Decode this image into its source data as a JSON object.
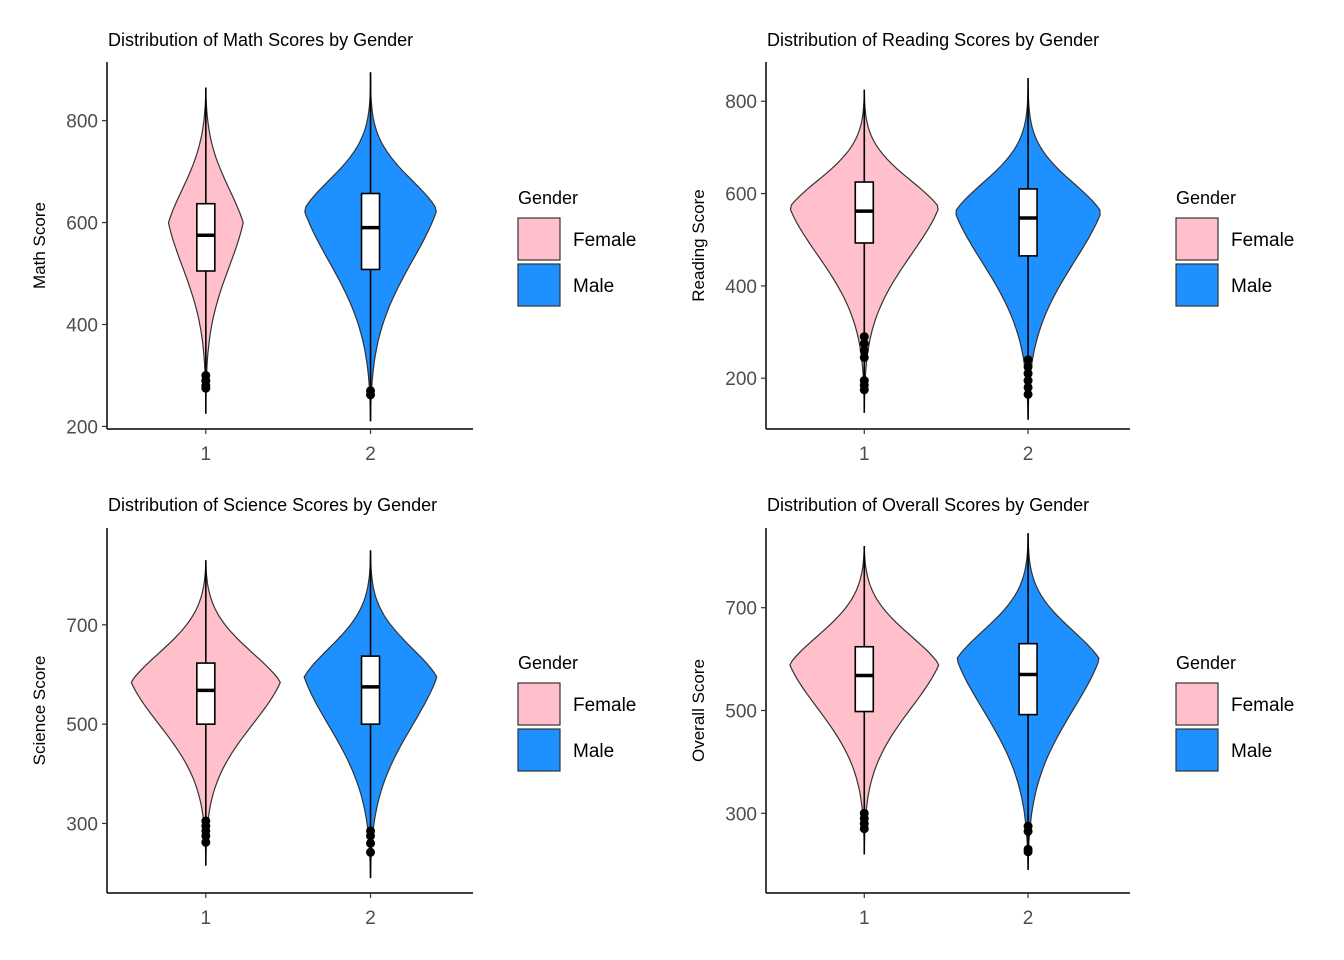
{
  "colors": {
    "female": "#FFC0CB",
    "male": "#1E90FF",
    "outline": "#333333"
  },
  "legend": {
    "title": "Gender",
    "items": [
      "Female",
      "Male"
    ]
  },
  "chart_data": [
    {
      "type": "violin",
      "title": "Distribution of Math Scores by Gender",
      "xlabel": "",
      "ylabel": "Math Score",
      "categories": [
        "1",
        "2"
      ],
      "ylim": [
        195,
        915
      ],
      "yticks": [
        200,
        400,
        600,
        800
      ],
      "series": [
        {
          "name": "Female",
          "min": 225,
          "max": 865,
          "q1": 505,
          "median": 575,
          "q3": 637,
          "center": 600,
          "half_width_frac": 0.45,
          "upper_bulge": 0.6,
          "lower_bulge": 0.5,
          "whisker_low": 305,
          "whisker_high": 820,
          "outliers": [
            300,
            290,
            280,
            275
          ]
        },
        {
          "name": "Male",
          "min": 210,
          "max": 895,
          "q1": 508,
          "median": 590,
          "q3": 657,
          "center": 625,
          "half_width_frac": 0.8,
          "upper_bulge": 0.45,
          "lower_bulge": 0.55,
          "whisker_low": 290,
          "whisker_high": 840,
          "outliers": [
            270,
            262
          ]
        }
      ]
    },
    {
      "type": "violin",
      "title": "Distribution of Reading Scores by Gender",
      "xlabel": "",
      "ylabel": "Reading Score",
      "categories": [
        "1",
        "2"
      ],
      "ylim": [
        90,
        885
      ],
      "yticks": [
        200,
        400,
        600,
        800
      ],
      "series": [
        {
          "name": "Female",
          "min": 125,
          "max": 825,
          "q1": 493,
          "median": 562,
          "q3": 625,
          "center": 570,
          "half_width_frac": 0.9,
          "upper_bulge": 0.5,
          "lower_bulge": 0.5,
          "whisker_low": 300,
          "whisker_high": 790,
          "outliers": [
            290,
            275,
            260,
            245,
            195,
            185,
            175
          ]
        },
        {
          "name": "Male",
          "min": 110,
          "max": 850,
          "q1": 465,
          "median": 547,
          "q3": 610,
          "center": 560,
          "half_width_frac": 0.88,
          "upper_bulge": 0.45,
          "lower_bulge": 0.55,
          "whisker_low": 245,
          "whisker_high": 800,
          "outliers": [
            240,
            225,
            210,
            195,
            180,
            165
          ]
        }
      ]
    },
    {
      "type": "violin",
      "title": "Distribution of Science Scores by Gender",
      "xlabel": "",
      "ylabel": "Science Score",
      "categories": [
        "1",
        "2"
      ],
      "ylim": [
        160,
        895
      ],
      "yticks": [
        300,
        500,
        700
      ],
      "series": [
        {
          "name": "Female",
          "min": 215,
          "max": 830,
          "q1": 500,
          "median": 568,
          "q3": 623,
          "center": 585,
          "half_width_frac": 0.9,
          "upper_bulge": 0.55,
          "lower_bulge": 0.5,
          "whisker_low": 310,
          "whisker_high": 790,
          "outliers": [
            305,
            295,
            285,
            275,
            262
          ]
        },
        {
          "name": "Male",
          "min": 190,
          "max": 850,
          "q1": 500,
          "median": 575,
          "q3": 637,
          "center": 595,
          "half_width_frac": 0.8,
          "upper_bulge": 0.5,
          "lower_bulge": 0.55,
          "whisker_low": 290,
          "whisker_high": 800,
          "outliers": [
            285,
            275,
            260,
            242
          ]
        }
      ]
    },
    {
      "type": "violin",
      "title": "Distribution of Overall Scores by Gender",
      "xlabel": "",
      "ylabel": "Overall Score",
      "categories": [
        "1",
        "2"
      ],
      "ylim": [
        145,
        855
      ],
      "yticks": [
        300,
        500,
        700
      ],
      "series": [
        {
          "name": "Female",
          "min": 220,
          "max": 820,
          "q1": 498,
          "median": 568,
          "q3": 624,
          "center": 590,
          "half_width_frac": 0.9,
          "upper_bulge": 0.55,
          "lower_bulge": 0.5,
          "whisker_low": 305,
          "whisker_high": 785,
          "outliers": [
            300,
            290,
            280,
            270
          ]
        },
        {
          "name": "Male",
          "min": 190,
          "max": 845,
          "q1": 492,
          "median": 570,
          "q3": 630,
          "center": 600,
          "half_width_frac": 0.86,
          "upper_bulge": 0.5,
          "lower_bulge": 0.55,
          "whisker_low": 280,
          "whisker_high": 800,
          "outliers": [
            275,
            265,
            230,
            225
          ]
        }
      ]
    }
  ]
}
